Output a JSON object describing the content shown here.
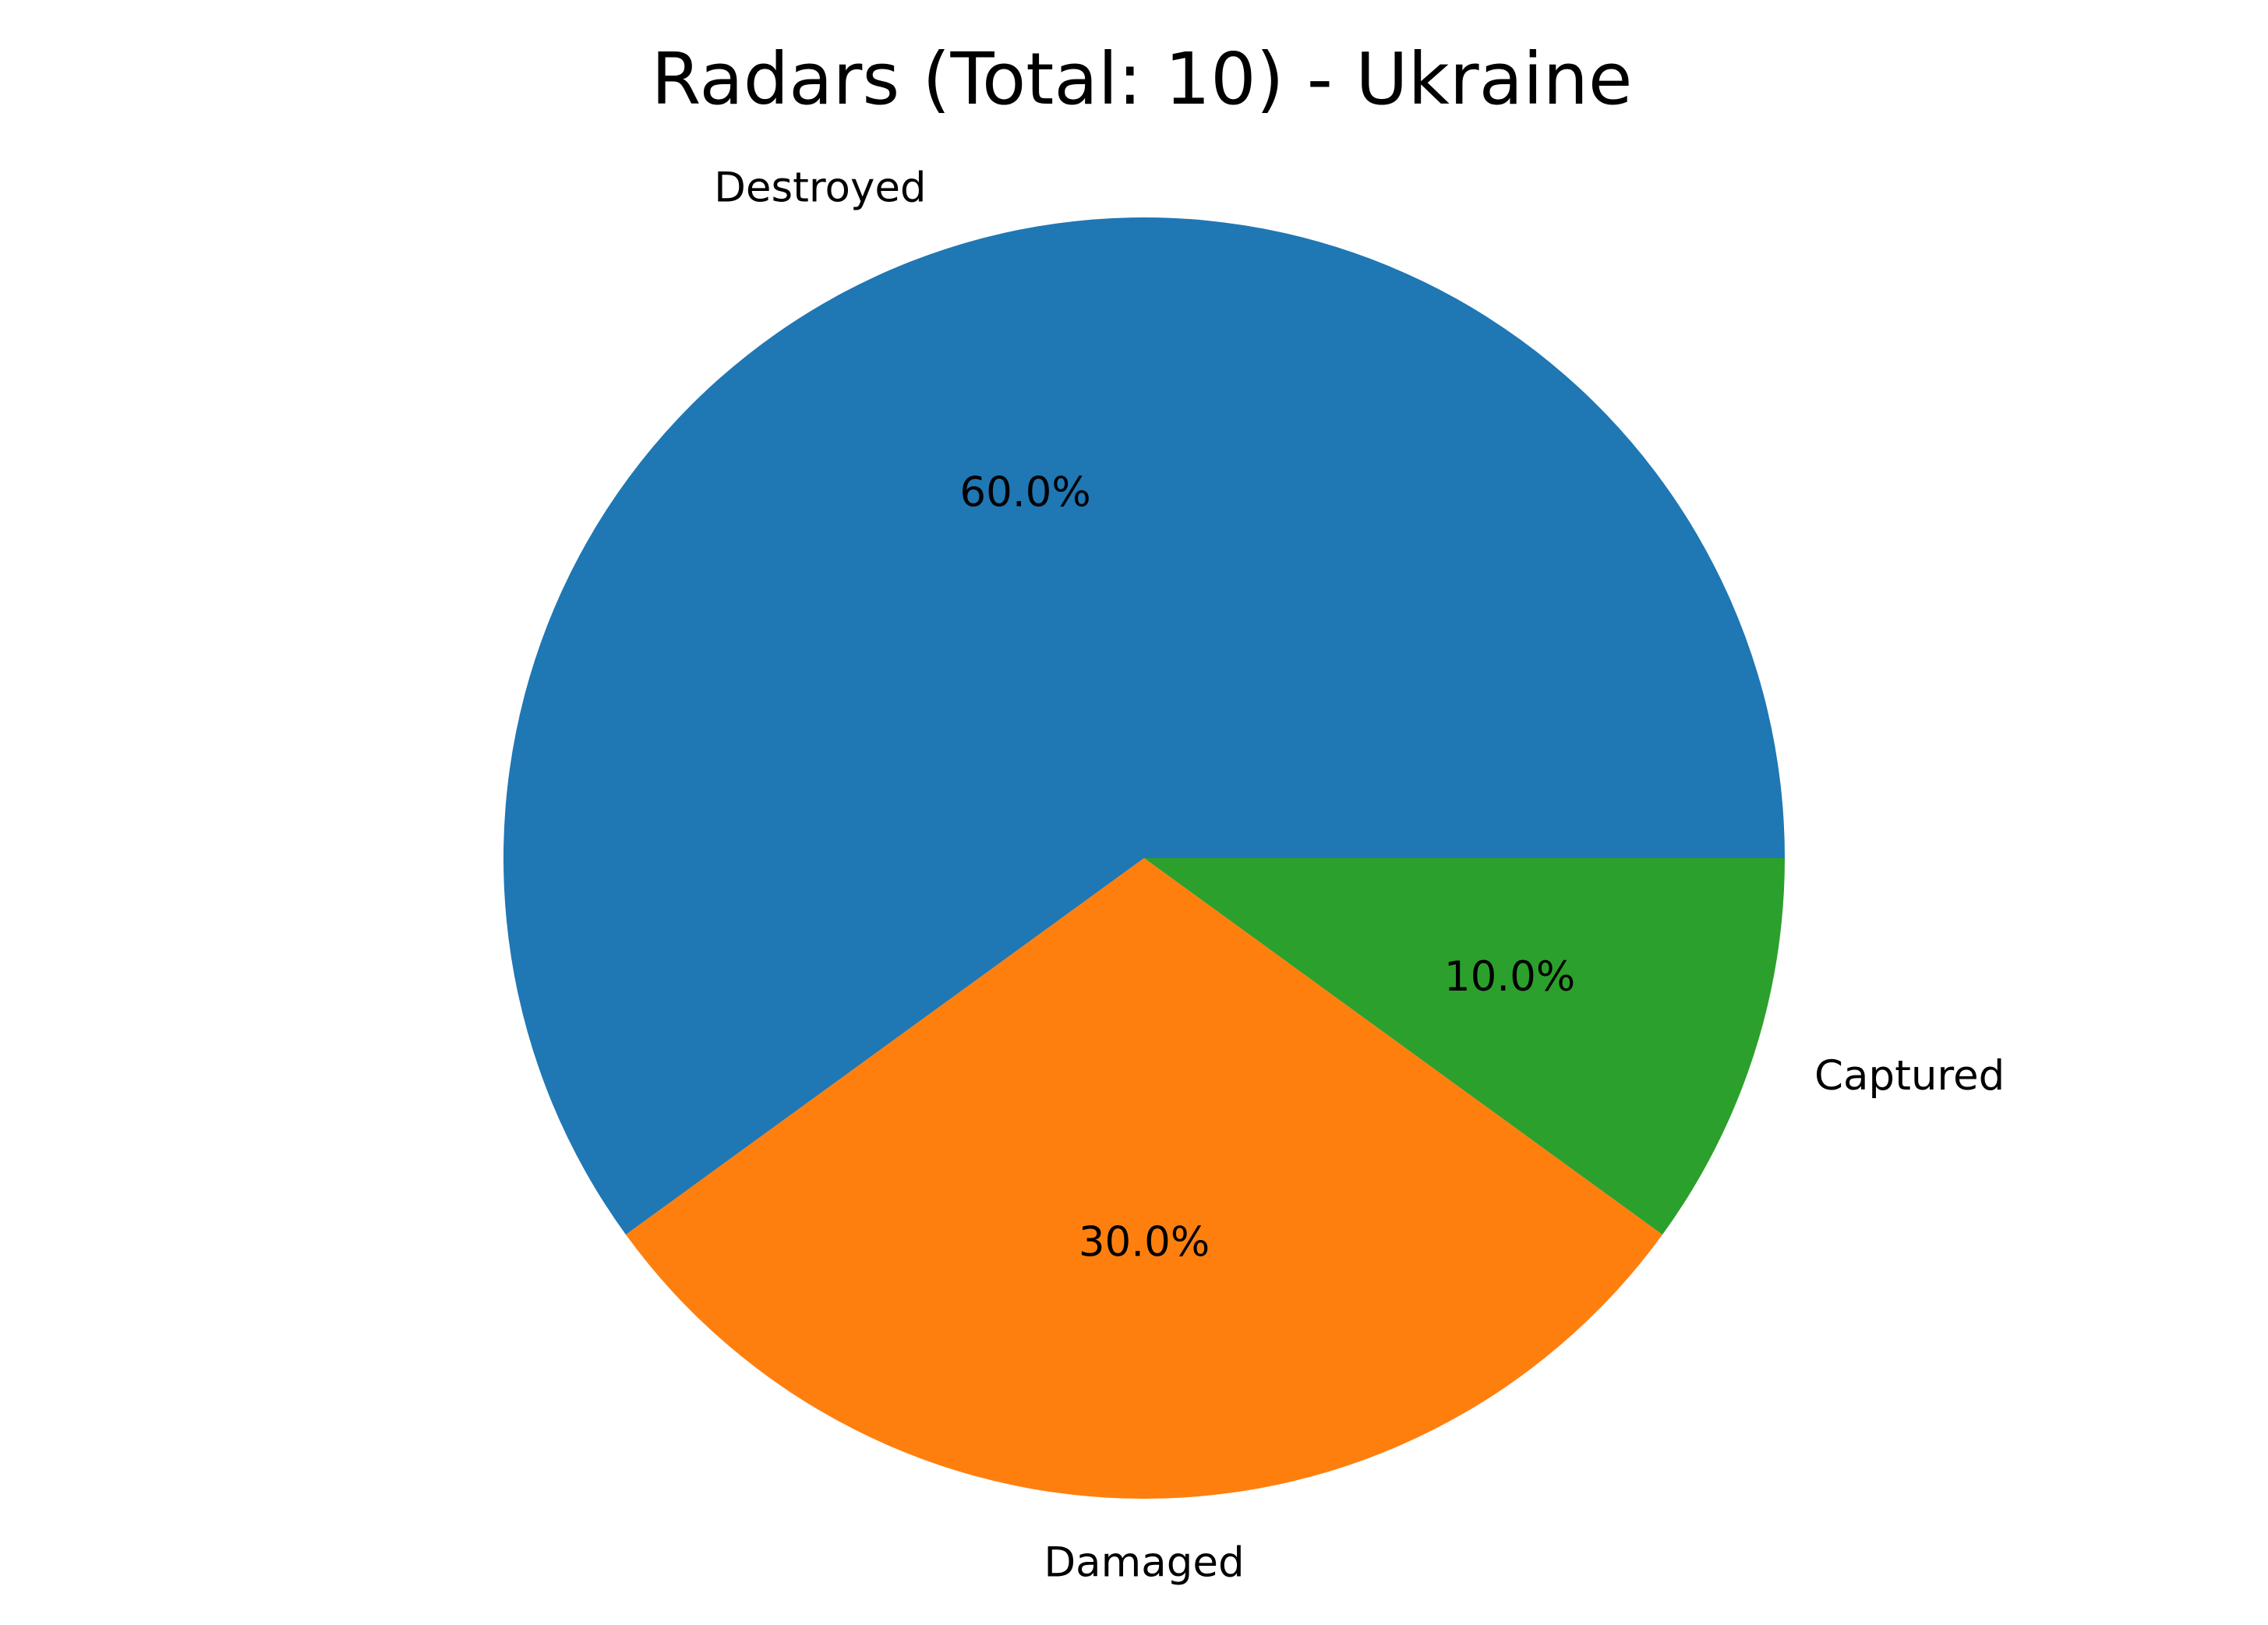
{
  "chart_data": {
    "type": "pie",
    "title": "Radars (Total: 10) - Ukraine",
    "slices": [
      {
        "label": "Destroyed",
        "value": 6,
        "percent_label": "60.0%",
        "color": "#1f77b4"
      },
      {
        "label": "Damaged",
        "value": 3,
        "percent_label": "30.0%",
        "color": "#ff7f0e"
      },
      {
        "label": "Captured",
        "value": 1,
        "percent_label": "10.0%",
        "color": "#2ca02c"
      }
    ],
    "start_angle_deg": 0,
    "direction": "counterclockwise"
  }
}
